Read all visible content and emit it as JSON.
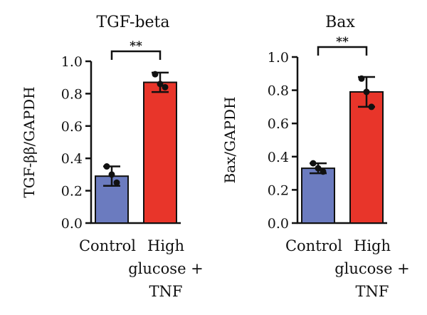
{
  "chart_data": [
    {
      "type": "bar",
      "title": "TGF-beta",
      "ylabel": "TGF-ββ/GAPDH",
      "xlabel": "",
      "categories": [
        "Control",
        "High glucose + TNF"
      ],
      "category_lines": [
        [
          "Control"
        ],
        [
          "High",
          "glucose +",
          "TNF"
        ]
      ],
      "values": [
        0.29,
        0.87
      ],
      "errors": [
        0.06,
        0.06
      ],
      "points": [
        [
          0.35,
          0.3,
          0.25
        ],
        [
          0.92,
          0.86,
          0.84
        ]
      ],
      "colors": [
        "#6b7bbf",
        "#e8352a"
      ],
      "ylim": [
        0,
        1.0
      ],
      "yticks": [
        "0.0",
        "0.2",
        "0.4",
        "0.6",
        "0.8",
        "1.0"
      ],
      "significance": "**",
      "grid": false
    },
    {
      "type": "bar",
      "title": "Bax",
      "ylabel": "Bax/GAPDH",
      "xlabel": "",
      "categories": [
        "Control",
        "High glucose + TNF"
      ],
      "category_lines": [
        [
          "Control"
        ],
        [
          "High",
          "glucose +",
          "TNF"
        ]
      ],
      "values": [
        0.33,
        0.79
      ],
      "errors": [
        0.03,
        0.09
      ],
      "points": [
        [
          0.36,
          0.33,
          0.31
        ],
        [
          0.87,
          0.79,
          0.7
        ]
      ],
      "colors": [
        "#6b7bbf",
        "#e8352a"
      ],
      "ylim": [
        0,
        1.0
      ],
      "yticks": [
        "0.0",
        "0.2",
        "0.4",
        "0.6",
        "0.8",
        "1.0"
      ],
      "significance": "**",
      "grid": false
    }
  ]
}
